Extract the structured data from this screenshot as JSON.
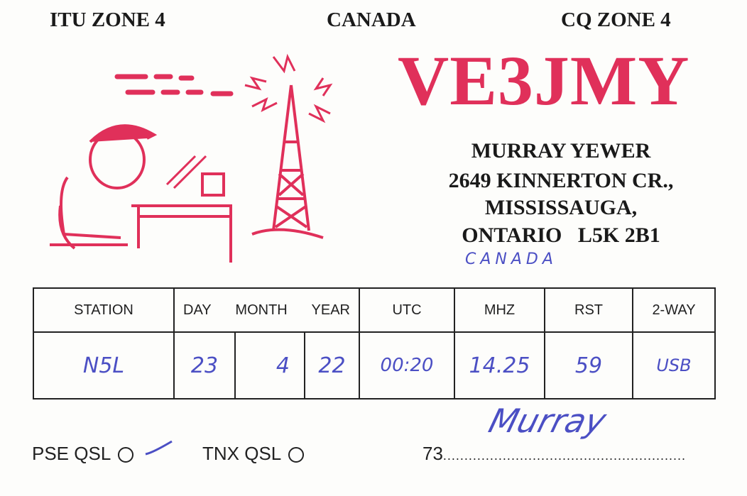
{
  "header": {
    "itu_zone": "ITU ZONE 4",
    "country": "CANADA",
    "cq_zone": "CQ ZONE 4"
  },
  "callsign": "VE3JMY",
  "colors": {
    "accent": "#e0305a",
    "ink": "#4b4fc4",
    "text": "#1a1a1a"
  },
  "address": {
    "name": "MURRAY YEWER",
    "street": "2649 KINNERTON CR.,",
    "city": "MISSISSAUGA,",
    "province_postal": "ONTARIO   L5K 2B1",
    "handwritten_country": "CANADA"
  },
  "table": {
    "headers": {
      "station": "STATION",
      "day": "DAY",
      "month": "MONTH",
      "year": "YEAR",
      "utc": "UTC",
      "mhz": "MHZ",
      "rst": "RST",
      "two_way": "2-WAY"
    },
    "row": {
      "station": "N5L",
      "day": "23",
      "month": "4",
      "year": "22",
      "utc": "00:20",
      "mhz": "14.25",
      "rst": "59",
      "two_way": "USB"
    }
  },
  "footer": {
    "pse_qsl": "PSE QSL",
    "pse_qsl_checked": true,
    "tnx_qsl": "TNX QSL",
    "tnx_qsl_checked": false,
    "closing": "73",
    "signature": "Murray"
  },
  "illustration": {
    "icon": "radio-operator-with-tower-icon"
  }
}
